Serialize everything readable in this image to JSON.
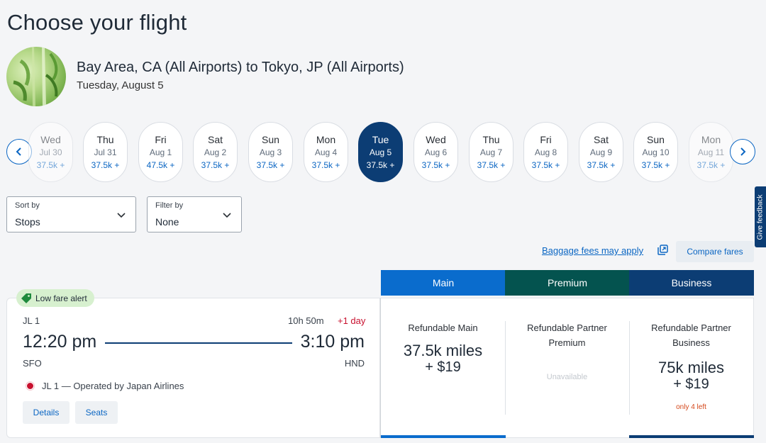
{
  "page": {
    "title": "Choose your flight"
  },
  "route": {
    "title": "Bay Area, CA (All Airports) to Tokyo, JP (All Airports)",
    "date": "Tuesday, August 5"
  },
  "dates": [
    {
      "dow": "Wed",
      "md": "Jul 30",
      "price": "37.5k +"
    },
    {
      "dow": "Thu",
      "md": "Jul 31",
      "price": "37.5k +"
    },
    {
      "dow": "Fri",
      "md": "Aug 1",
      "price": "47.5k +"
    },
    {
      "dow": "Sat",
      "md": "Aug 2",
      "price": "37.5k +"
    },
    {
      "dow": "Sun",
      "md": "Aug 3",
      "price": "37.5k +"
    },
    {
      "dow": "Mon",
      "md": "Aug 4",
      "price": "37.5k +"
    },
    {
      "dow": "Tue",
      "md": "Aug 5",
      "price": "37.5k +"
    },
    {
      "dow": "Wed",
      "md": "Aug 6",
      "price": "37.5k +"
    },
    {
      "dow": "Thu",
      "md": "Aug 7",
      "price": "37.5k +"
    },
    {
      "dow": "Fri",
      "md": "Aug 8",
      "price": "37.5k +"
    },
    {
      "dow": "Sat",
      "md": "Aug 9",
      "price": "37.5k +"
    },
    {
      "dow": "Sun",
      "md": "Aug 10",
      "price": "37.5k +"
    },
    {
      "dow": "Mon",
      "md": "Aug 11",
      "price": "37.5k +"
    }
  ],
  "sort": {
    "label": "Sort by",
    "value": "Stops"
  },
  "filter": {
    "label": "Filter by",
    "value": "None"
  },
  "links": {
    "baggage": "Baggage fees may apply",
    "compare": "Compare fares",
    "feedback": "Give feedback"
  },
  "fare_tabs": [
    {
      "label": "Main",
      "color": "#0a6ccd"
    },
    {
      "label": "Premium",
      "color": "#04534f"
    },
    {
      "label": "Business",
      "color": "#0c3d74"
    }
  ],
  "flight": {
    "badge": "Low fare alert",
    "number": "JL 1",
    "duration": "10h 50m",
    "day_offset": "+1 day",
    "depart_time": "12:20 pm",
    "arrive_time": "3:10 pm",
    "origin": "SFO",
    "destination": "HND",
    "operated_by": "JL 1 — Operated by Japan Airlines",
    "details_label": "Details",
    "seats_label": "Seats"
  },
  "fares": [
    {
      "name": "Refundable Main",
      "miles": "37.5k miles",
      "fee": "+ $19",
      "note": ""
    },
    {
      "name": "Refundable Partner Premium",
      "status": "Unavailable"
    },
    {
      "name": "Refundable Partner Business",
      "miles": "75k miles",
      "fee": "+ $19",
      "note": "only 4 left"
    }
  ],
  "colors": {
    "accent": "#0b66c3",
    "selected_date": "#0c3d74",
    "alert": "#c8102e",
    "low_fare_bg": "#d7f0cf"
  }
}
